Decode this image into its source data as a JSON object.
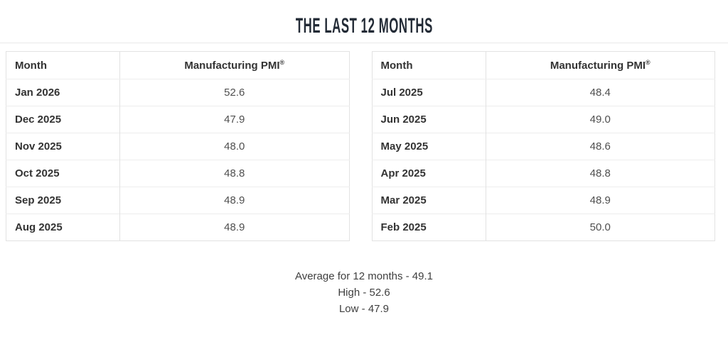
{
  "page": {
    "title": "THE LAST 12 MONTHS"
  },
  "colors": {
    "title_text": "#232b36",
    "table_border": "#e2e2e2",
    "row_divider": "#ededed",
    "month_text": "#333333",
    "value_text": "#4f4f4f"
  },
  "tables": {
    "left": {
      "headers": {
        "month": "Month",
        "pmi": "Manufacturing PMI",
        "pmi_sup": "®"
      },
      "rows": [
        {
          "month": "Jan 2026",
          "pmi": "52.6"
        },
        {
          "month": "Dec 2025",
          "pmi": "47.9"
        },
        {
          "month": "Nov 2025",
          "pmi": "48.0"
        },
        {
          "month": "Oct 2025",
          "pmi": "48.8"
        },
        {
          "month": "Sep 2025",
          "pmi": "48.9"
        },
        {
          "month": "Aug 2025",
          "pmi": "48.9"
        }
      ]
    },
    "right": {
      "headers": {
        "month": "Month",
        "pmi": "Manufacturing PMI",
        "pmi_sup": "®"
      },
      "rows": [
        {
          "month": "Jul 2025",
          "pmi": "48.4"
        },
        {
          "month": "Jun 2025",
          "pmi": "49.0"
        },
        {
          "month": "May 2025",
          "pmi": "48.6"
        },
        {
          "month": "Apr 2025",
          "pmi": "48.8"
        },
        {
          "month": "Mar 2025",
          "pmi": "48.9"
        },
        {
          "month": "Feb 2025",
          "pmi": "50.0"
        }
      ]
    }
  },
  "summary": {
    "average": "Average for 12 months - 49.1",
    "high": "High - 52.6",
    "low": "Low - 47.9"
  },
  "chart_data": {
    "type": "table",
    "title": "THE LAST 12 MONTHS",
    "columns": [
      "Month",
      "Manufacturing PMI®"
    ],
    "rows": [
      [
        "Jan 2026",
        52.6
      ],
      [
        "Dec 2025",
        47.9
      ],
      [
        "Nov 2025",
        48.0
      ],
      [
        "Oct 2025",
        48.8
      ],
      [
        "Sep 2025",
        48.9
      ],
      [
        "Aug 2025",
        48.9
      ],
      [
        "Jul 2025",
        48.4
      ],
      [
        "Jun 2025",
        49.0
      ],
      [
        "May 2025",
        48.6
      ],
      [
        "Apr 2025",
        48.8
      ],
      [
        "Mar 2025",
        48.9
      ],
      [
        "Feb 2025",
        50.0
      ]
    ],
    "summary": {
      "average_12_months": 49.1,
      "high": 52.6,
      "low": 47.9
    },
    "layout": "two side-by-side tables of 6 rows each, newest month first"
  }
}
